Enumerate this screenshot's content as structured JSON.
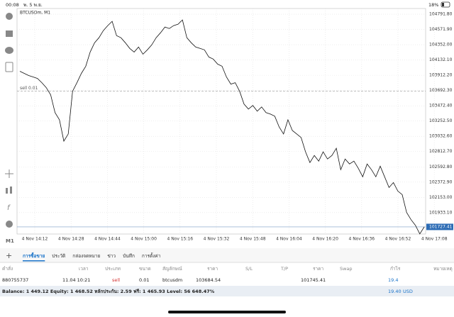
{
  "status_bar": {
    "time": "00:08",
    "date": "พ. 5 พ.ย.",
    "battery": "18%"
  },
  "chart": {
    "type": "line",
    "symbol": "BTCUSDm, M1",
    "timeframe": "M1",
    "order_label": "sell 0.01",
    "color": "#111111",
    "current_price": {
      "value": 101727.41,
      "label": "101727.41"
    },
    "ylim": [
      101624.8,
      104874
    ],
    "yticks": [
      {
        "value": 104791.8,
        "label": "104791.80"
      },
      {
        "value": 104571.9,
        "label": "104571.90"
      },
      {
        "value": 104352,
        "label": "104352.00"
      },
      {
        "value": 104132.1,
        "label": "104132.10"
      },
      {
        "value": 103912.2,
        "label": "103912.20"
      },
      {
        "value": 103692.3,
        "label": "103692.30"
      },
      {
        "value": 103472.4,
        "label": "103472.40"
      },
      {
        "value": 103252.5,
        "label": "103252.50"
      },
      {
        "value": 103032.6,
        "label": "103032.60"
      },
      {
        "value": 102812.7,
        "label": "102812.70"
      },
      {
        "value": 102592.8,
        "label": "102592.80"
      },
      {
        "value": 102372.9,
        "label": "102372.90"
      },
      {
        "value": 102153,
        "label": "102153.00"
      },
      {
        "value": 101933.1,
        "label": "101933.10"
      }
    ],
    "xticks": [
      "4 Nov 14:12",
      "4 Nov 14:28",
      "4 Nov 14:44",
      "4 Nov 15:00",
      "4 Nov 15:16",
      "4 Nov 15:32",
      "4 Nov 15:48",
      "4 Nov 16:04",
      "4 Nov 16:20",
      "4 Nov 16:36",
      "4 Nov 16:52",
      "4 Nov 17:08"
    ],
    "values": [
      103970,
      103939,
      103908,
      103888,
      103867,
      103805,
      103734,
      103631,
      103374,
      103271,
      102963,
      103066,
      103682,
      103805,
      103939,
      104042,
      104247,
      104381,
      104453,
      104556,
      104628,
      104689,
      104484,
      104453,
      104381,
      104299,
      104247,
      104319,
      104216,
      104278,
      104350,
      104453,
      104525,
      104607,
      104586,
      104628,
      104648,
      104710,
      104453,
      104381,
      104319,
      104299,
      104278,
      104175,
      104145,
      104073,
      104042,
      103888,
      103785,
      103805,
      103682,
      103497,
      103425,
      103477,
      103394,
      103456,
      103374,
      103353,
      103323,
      103168,
      103066,
      103271,
      103117,
      103066,
      103014,
      102809,
      102655,
      102757,
      102675,
      102809,
      102706,
      102757,
      102860,
      102552,
      102706,
      102634,
      102675,
      102572,
      102449,
      102634,
      102552,
      102449,
      102603,
      102449,
      102295,
      102367,
      102244,
      102192,
      101935,
      101832,
      101750,
      101627,
      101727
    ]
  },
  "tabs": [
    "การซื้อขาย",
    "ประวัติ",
    "กล่องจดหมาย",
    "ข่าว",
    "บันทึก",
    "การตั้งค่า"
  ],
  "table": {
    "headers": [
      "คำสั่ง",
      "เวลา",
      "ประเภท",
      "ขนาด",
      "สัญลักษณ์",
      "ราคา",
      "S/L",
      "T/P",
      "ราคา",
      "Swap",
      "กำไร",
      "หมายเหตุ"
    ],
    "row": {
      "order": "880755737",
      "time": "11.04 10:21",
      "type": "sell",
      "size": "0.01",
      "symbol": "btcusdm",
      "open_price": 103684.54,
      "price": 101745.41,
      "profit": 19.4
    }
  },
  "summary": {
    "text": "Balance: 1 449.12 Equity: 1 468.52 หลักประกัน: 2.59 ฟรี: 1 465.93 Level: 56 648.47%",
    "profit": "19.40",
    "currency": "USD"
  }
}
